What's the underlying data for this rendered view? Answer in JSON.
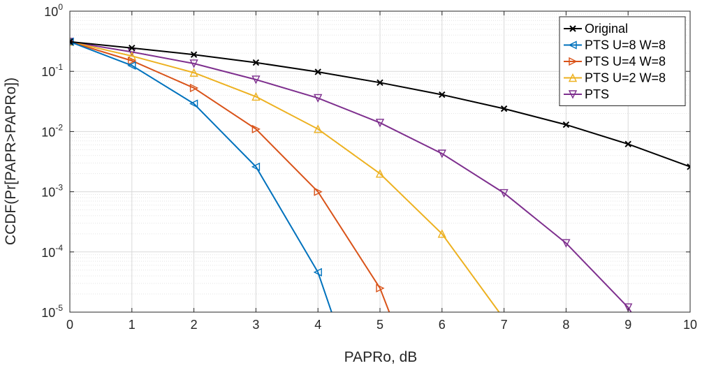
{
  "chart_data": {
    "type": "line",
    "xlabel": "PAPRo, dB",
    "ylabel": "CCDF(Pr[PAPR>PAPRo])",
    "xlim": [
      0,
      10
    ],
    "ylim": [
      1e-05,
      1
    ],
    "yscale": "log",
    "grid": true,
    "minor_grid": true,
    "legend_position": "top-right",
    "x_ticks": [
      {
        "value": 0,
        "label": "0"
      },
      {
        "value": 1,
        "label": "1"
      },
      {
        "value": 2,
        "label": "2"
      },
      {
        "value": 3,
        "label": "3"
      },
      {
        "value": 4,
        "label": "4"
      },
      {
        "value": 5,
        "label": "5"
      },
      {
        "value": 6,
        "label": "6"
      },
      {
        "value": 7,
        "label": "7"
      },
      {
        "value": 8,
        "label": "8"
      },
      {
        "value": 9,
        "label": "9"
      },
      {
        "value": 10,
        "label": "10"
      }
    ],
    "y_ticks": [
      {
        "value": 1,
        "base": "10",
        "exp": "0"
      },
      {
        "value": 0.1,
        "base": "10",
        "exp": "-1"
      },
      {
        "value": 0.01,
        "base": "10",
        "exp": "-2"
      },
      {
        "value": 0.001,
        "base": "10",
        "exp": "-3"
      },
      {
        "value": 0.0001,
        "base": "10",
        "exp": "-4"
      },
      {
        "value": 1e-05,
        "base": "10",
        "exp": "-5"
      }
    ],
    "series": [
      {
        "name": "Original",
        "color": "#000000",
        "marker": "x",
        "x": [
          0,
          1,
          2,
          3,
          4,
          5,
          6,
          7,
          8,
          9,
          10
        ],
        "y": [
          0.31,
          0.245,
          0.19,
          0.14,
          0.098,
          0.065,
          0.041,
          0.024,
          0.013,
          0.0062,
          0.0026
        ]
      },
      {
        "name": "PTS U=8 W=8",
        "color": "#0072BD",
        "marker": "triangle-left",
        "x": [
          0,
          1,
          2,
          3,
          4,
          4.22
        ],
        "y": [
          0.31,
          0.125,
          0.029,
          0.0026,
          4.6e-05,
          1e-05
        ]
      },
      {
        "name": "PTS U=4 W=8",
        "color": "#D95319",
        "marker": "triangle-right",
        "x": [
          0,
          1,
          2,
          3,
          4,
          5,
          5.15
        ],
        "y": [
          0.31,
          0.15,
          0.053,
          0.011,
          0.001,
          2.5e-05,
          1e-05
        ]
      },
      {
        "name": "PTS U=2 W=8",
        "color": "#EDB120",
        "marker": "triangle-up",
        "x": [
          0,
          1,
          2,
          3,
          4,
          5,
          6,
          6.92
        ],
        "y": [
          0.31,
          0.18,
          0.095,
          0.038,
          0.011,
          0.002,
          0.0002,
          1e-05
        ]
      },
      {
        "name": "PTS",
        "color": "#7E2F8E",
        "marker": "triangle-down",
        "x": [
          0,
          1,
          2,
          3,
          4,
          5,
          6,
          7,
          8,
          9,
          9.05
        ],
        "y": [
          0.31,
          0.21,
          0.135,
          0.073,
          0.036,
          0.014,
          0.0043,
          0.00095,
          0.00014,
          1.2e-05,
          1e-05
        ]
      }
    ]
  }
}
